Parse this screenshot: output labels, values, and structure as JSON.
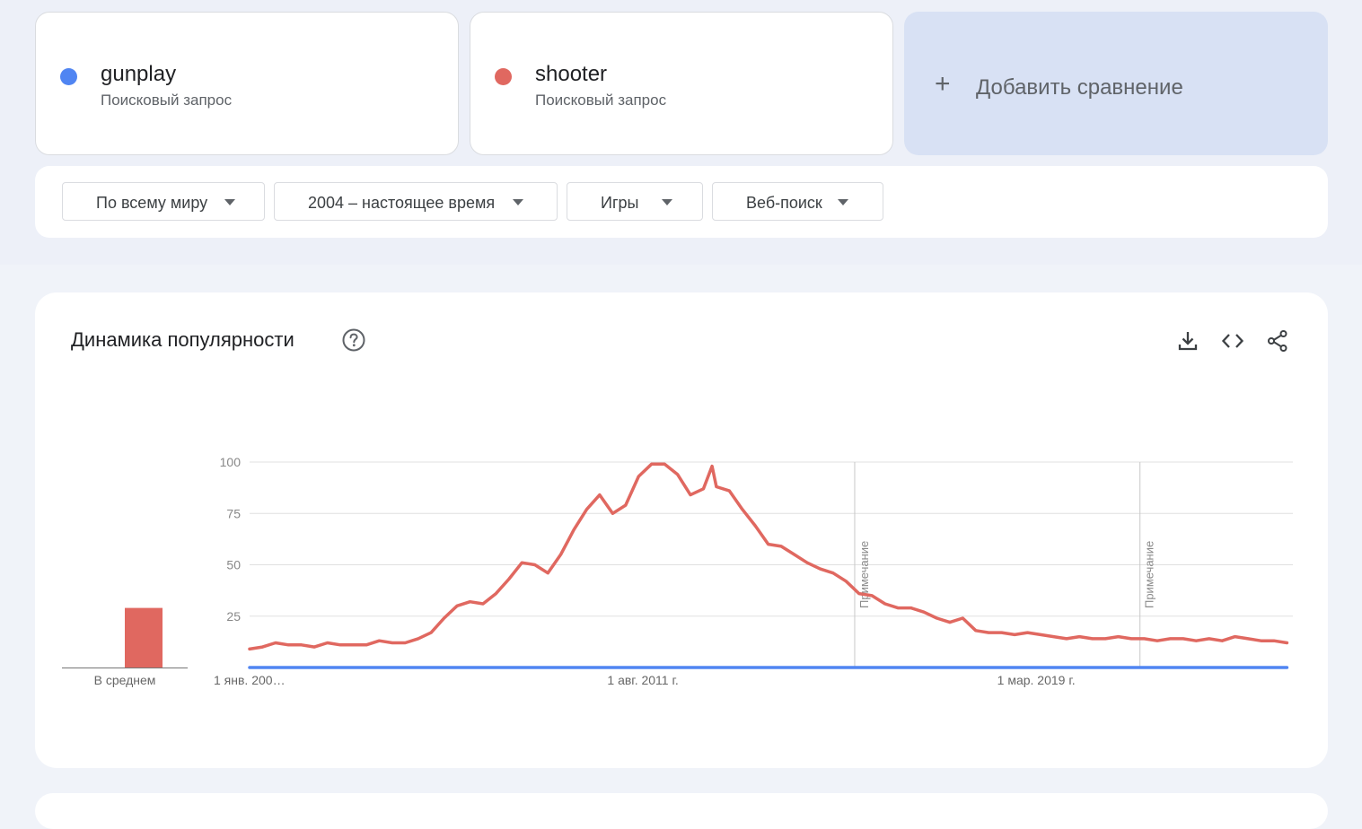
{
  "terms": [
    {
      "name": "gunplay",
      "type": "Поисковый запрос",
      "color": "#5085f2"
    },
    {
      "name": "shooter",
      "type": "Поисковый запрос",
      "color": "#e06860"
    }
  ],
  "add_compare": {
    "icon": "plus-icon",
    "label": "Добавить сравнение"
  },
  "filters": {
    "region": "По всему миру",
    "period": "2004 – настоящее время",
    "category": "Игры",
    "search_type": "Веб-поиск"
  },
  "chart_section": {
    "title": "Динамика популярности",
    "help_icon": "help-circle-icon",
    "tools": [
      "download-icon",
      "embed-code-icon",
      "share-icon"
    ],
    "average_label": "В среднем"
  },
  "chart_data": {
    "type": "line",
    "y_ticks": [
      100,
      75,
      50,
      25
    ],
    "ylim": [
      0,
      100
    ],
    "x_tick_labels": [
      "1 янв. 200…",
      "1 авг. 2011 г.",
      "1 мар. 2019 г."
    ],
    "annotations": [
      {
        "label": "Примечание",
        "date": "2015-09"
      },
      {
        "label": "Примечание",
        "date": "2021-03"
      }
    ],
    "averages": {
      "gunplay": 0,
      "shooter": 29
    },
    "series": [
      {
        "name": "gunplay",
        "color": "#5085f2",
        "points": [
          [
            "2004-01",
            0
          ],
          [
            "2024-01",
            0
          ]
        ]
      },
      {
        "name": "shooter",
        "color": "#e06860",
        "points": [
          [
            "2004-01",
            9
          ],
          [
            "2004-04",
            10
          ],
          [
            "2004-07",
            12
          ],
          [
            "2004-10",
            11
          ],
          [
            "2005-01",
            11
          ],
          [
            "2005-04",
            10
          ],
          [
            "2005-07",
            12
          ],
          [
            "2005-10",
            11
          ],
          [
            "2006-01",
            11
          ],
          [
            "2006-04",
            11
          ],
          [
            "2006-07",
            13
          ],
          [
            "2006-10",
            12
          ],
          [
            "2007-01",
            12
          ],
          [
            "2007-04",
            14
          ],
          [
            "2007-07",
            17
          ],
          [
            "2007-10",
            24
          ],
          [
            "2008-01",
            30
          ],
          [
            "2008-04",
            32
          ],
          [
            "2008-07",
            31
          ],
          [
            "2008-10",
            36
          ],
          [
            "2009-01",
            43
          ],
          [
            "2009-04",
            51
          ],
          [
            "2009-07",
            50
          ],
          [
            "2009-10",
            46
          ],
          [
            "2010-01",
            55
          ],
          [
            "2010-04",
            67
          ],
          [
            "2010-07",
            77
          ],
          [
            "2010-10",
            84
          ],
          [
            "2011-01",
            75
          ],
          [
            "2011-04",
            79
          ],
          [
            "2011-07",
            93
          ],
          [
            "2011-10",
            99
          ],
          [
            "2012-01",
            99
          ],
          [
            "2012-04",
            94
          ],
          [
            "2012-07",
            84
          ],
          [
            "2012-10",
            87
          ],
          [
            "2012-12",
            98
          ],
          [
            "2013-01",
            88
          ],
          [
            "2013-04",
            86
          ],
          [
            "2013-07",
            77
          ],
          [
            "2013-10",
            69
          ],
          [
            "2014-01",
            60
          ],
          [
            "2014-04",
            59
          ],
          [
            "2014-07",
            55
          ],
          [
            "2014-10",
            51
          ],
          [
            "2015-01",
            48
          ],
          [
            "2015-04",
            46
          ],
          [
            "2015-07",
            42
          ],
          [
            "2015-10",
            36
          ],
          [
            "2016-01",
            35
          ],
          [
            "2016-04",
            31
          ],
          [
            "2016-07",
            29
          ],
          [
            "2016-10",
            29
          ],
          [
            "2017-01",
            27
          ],
          [
            "2017-04",
            24
          ],
          [
            "2017-07",
            22
          ],
          [
            "2017-10",
            24
          ],
          [
            "2018-01",
            18
          ],
          [
            "2018-04",
            17
          ],
          [
            "2018-07",
            17
          ],
          [
            "2018-10",
            16
          ],
          [
            "2019-01",
            17
          ],
          [
            "2019-04",
            16
          ],
          [
            "2019-07",
            15
          ],
          [
            "2019-10",
            14
          ],
          [
            "2020-01",
            15
          ],
          [
            "2020-04",
            14
          ],
          [
            "2020-07",
            14
          ],
          [
            "2020-10",
            15
          ],
          [
            "2021-01",
            14
          ],
          [
            "2021-04",
            14
          ],
          [
            "2021-07",
            13
          ],
          [
            "2021-10",
            14
          ],
          [
            "2022-01",
            14
          ],
          [
            "2022-04",
            13
          ],
          [
            "2022-07",
            14
          ],
          [
            "2022-10",
            13
          ],
          [
            "2023-01",
            15
          ],
          [
            "2023-04",
            14
          ],
          [
            "2023-07",
            13
          ],
          [
            "2023-10",
            13
          ],
          [
            "2024-01",
            12
          ]
        ]
      }
    ]
  }
}
